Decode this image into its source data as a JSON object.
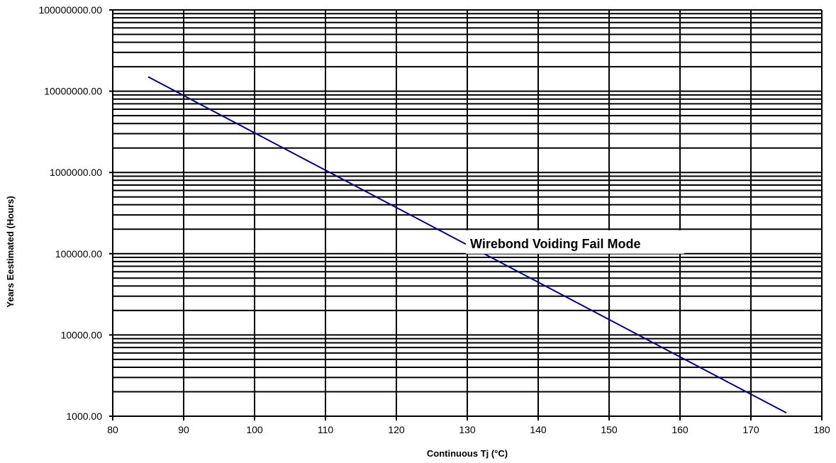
{
  "chart_data": {
    "type": "line",
    "title": "",
    "xlabel": "Continuous Tj (°C)",
    "ylabel": "Years Eestimated (Hours)",
    "xlim": [
      80,
      180
    ],
    "ylim": [
      1000,
      100000000
    ],
    "yscale": "log",
    "grid": true,
    "x_ticks": [
      "80",
      "90",
      "100",
      "110",
      "120",
      "130",
      "140",
      "150",
      "160",
      "170",
      "180"
    ],
    "y_ticks": [
      "1000.00",
      "10000.00",
      "100000.00",
      "1000000.00",
      "10000000.00",
      "100000000.00"
    ],
    "series": [
      {
        "x": [
          85,
          175
        ],
        "y": [
          15000000,
          1100
        ],
        "color": "#000080"
      }
    ],
    "annotations": [
      {
        "text": "Wirebond Voiding Fail Mode",
        "x": 130,
        "y": 100000
      }
    ]
  }
}
